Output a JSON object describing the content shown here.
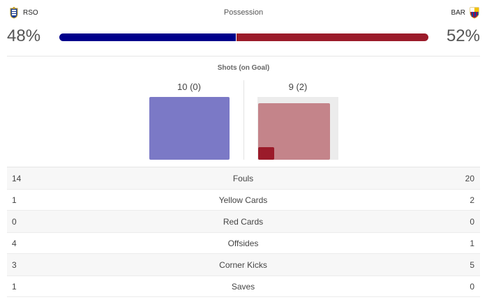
{
  "colors": {
    "home": "#00008b",
    "away": "#9b1b2a",
    "home_shots": "#7b79c6",
    "away_shots": "#c4848a"
  },
  "home": {
    "abbr": "RSO",
    "crest_icon": "real-sociedad-crest-icon",
    "possession": "48%",
    "possession_value": 48
  },
  "away": {
    "abbr": "BAR",
    "crest_icon": "barcelona-crest-icon",
    "possession": "52%",
    "possession_value": 52
  },
  "possession_label": "Possession",
  "shots": {
    "title": "Shots (on Goal)",
    "home": "10 (0)",
    "away": "9 (2)"
  },
  "stats": [
    {
      "home": "14",
      "label": "Fouls",
      "away": "20"
    },
    {
      "home": "1",
      "label": "Yellow Cards",
      "away": "2"
    },
    {
      "home": "0",
      "label": "Red Cards",
      "away": "0"
    },
    {
      "home": "4",
      "label": "Offsides",
      "away": "1"
    },
    {
      "home": "3",
      "label": "Corner Kicks",
      "away": "5"
    },
    {
      "home": "1",
      "label": "Saves",
      "away": "0"
    }
  ]
}
